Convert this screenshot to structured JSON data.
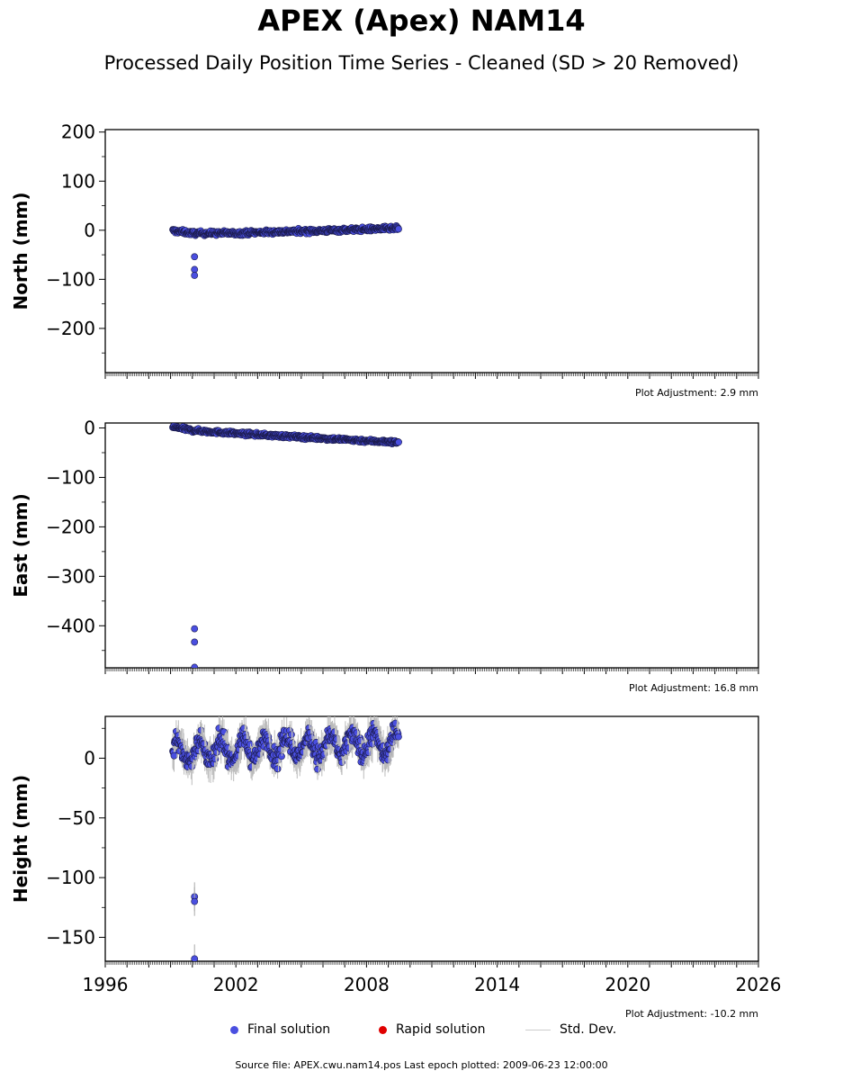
{
  "header": {
    "title": "APEX (Apex) NAM14",
    "subtitle": "Processed Daily Position Time Series - Cleaned (SD > 20 Removed)"
  },
  "legend": {
    "final_label": "Final solution",
    "rapid_label": "Rapid solution",
    "std_label": "Std. Dev.",
    "final_color": "#4a4fe0",
    "rapid_color": "#e00000",
    "std_color": "#cccccc"
  },
  "footer": {
    "source": "Source file: APEX.cwu.nam14.pos  Last epoch plotted: 2009-06-23 12:00:00"
  },
  "chart_data": [
    {
      "type": "scatter",
      "ylabel": "North (mm)",
      "xlim": [
        1996,
        2026
      ],
      "ylim": [
        -290,
        205
      ],
      "yticks": [
        200,
        100,
        0,
        -100,
        -200
      ],
      "adjustment": "Plot Adjustment: 2.9 mm",
      "trend": [
        [
          1999.1,
          -1
        ],
        [
          2000.0,
          -6
        ],
        [
          2002.0,
          -6
        ],
        [
          2004.0,
          -3
        ],
        [
          2006.0,
          -1
        ],
        [
          2008.0,
          2
        ],
        [
          2009.47,
          4
        ]
      ],
      "scatter": 3,
      "outliers": [
        [
          2000.1,
          -54
        ],
        [
          2000.1,
          -80
        ],
        [
          2000.1,
          -92
        ]
      ]
    },
    {
      "type": "scatter",
      "ylabel": "East (mm)",
      "xlim": [
        1996,
        2026
      ],
      "ylim": [
        -485,
        10
      ],
      "yticks": [
        0,
        -100,
        -200,
        -300,
        -400
      ],
      "adjustment": "Plot Adjustment: 16.8 mm",
      "trend": [
        [
          1999.1,
          2
        ],
        [
          2000.0,
          -5
        ],
        [
          2002.0,
          -11
        ],
        [
          2004.0,
          -16
        ],
        [
          2006.0,
          -21
        ],
        [
          2008.0,
          -26
        ],
        [
          2009.47,
          -29
        ]
      ],
      "scatter": 2.5,
      "outliers": [
        [
          2000.1,
          -406
        ],
        [
          2000.1,
          -433
        ],
        [
          2000.1,
          -484
        ]
      ]
    },
    {
      "type": "scatter",
      "ylabel": "Height (mm)",
      "xlim": [
        1996,
        2026
      ],
      "ylim": [
        -170,
        35
      ],
      "yticks": [
        0,
        -50,
        -100,
        -150
      ],
      "adjustment": "Plot Adjustment: -10.2 mm",
      "trend": [
        [
          1999.1,
          5
        ],
        [
          2009.47,
          13
        ]
      ],
      "seasonal_amplitude": 9,
      "scatter": 6,
      "outliers": [
        [
          2000.1,
          -116
        ],
        [
          2000.1,
          -120
        ],
        [
          2000.1,
          -168
        ]
      ]
    }
  ],
  "x_axis": {
    "tick_labels": [
      {
        "value": 1996,
        "label": "1996"
      },
      {
        "value": 2002,
        "label": "2002"
      },
      {
        "value": 2008,
        "label": "2008"
      },
      {
        "value": 2014,
        "label": "2014"
      },
      {
        "value": 2020,
        "label": "2020"
      },
      {
        "value": 2026,
        "label": "2026"
      }
    ]
  }
}
